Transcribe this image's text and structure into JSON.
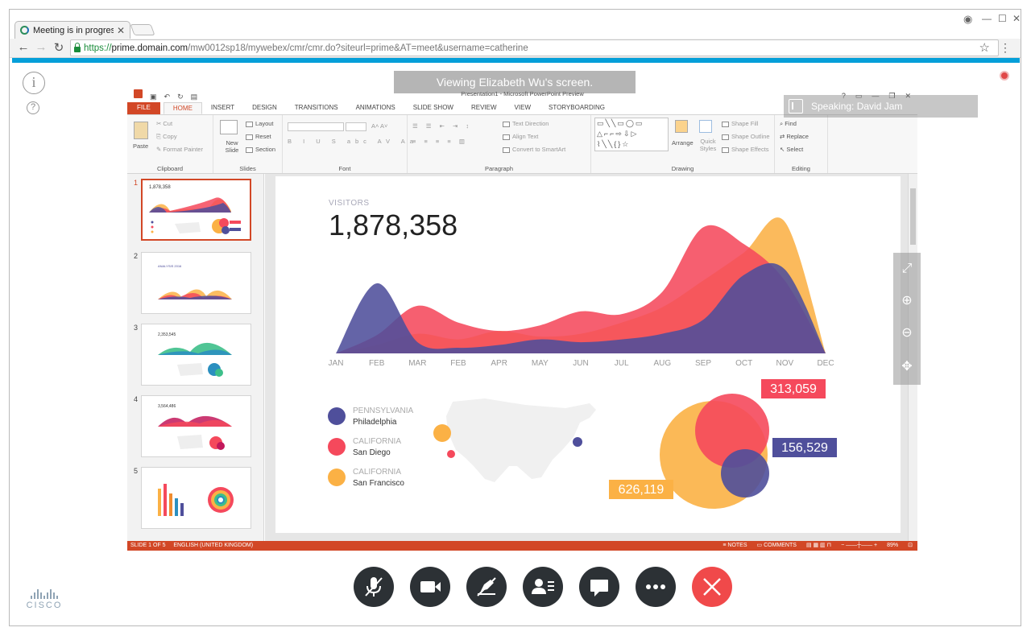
{
  "browser": {
    "tab_title": "Meeting is in progress...",
    "url_scheme": "https://",
    "url_host": "prime.domain.com",
    "url_path": "/mw0012sp18/mywebex/cmr/cmr.do?siteurl=prime&AT=meet&username=catherine"
  },
  "meeting": {
    "viewing_banner": "Viewing Elizabeth Wu's screen.",
    "speaking_banner": "Speaking: David Jam"
  },
  "ppt": {
    "window_title": "Presentation1 - Microsoft PowerPoint Preview",
    "tabs": [
      "FILE",
      "HOME",
      "INSERT",
      "DESIGN",
      "TRANSITIONS",
      "ANIMATIONS",
      "SLIDE SHOW",
      "REVIEW",
      "VIEW",
      "STORYBOARDING"
    ],
    "active_tab": "HOME",
    "groups": {
      "clipboard": {
        "label": "Clipboard",
        "paste": "Paste",
        "cut": "Cut",
        "copy": "Copy",
        "format_painter": "Format Painter"
      },
      "slides": {
        "label": "Slides",
        "new_slide": "New Slide",
        "layout": "Layout",
        "reset": "Reset",
        "section": "Section"
      },
      "font": {
        "label": "Font"
      },
      "paragraph": {
        "label": "Paragraph",
        "text_direction": "Text Direction",
        "align_text": "Align Text",
        "convert_smartart": "Convert to SmartArt"
      },
      "drawing": {
        "label": "Drawing",
        "arrange": "Arrange",
        "quick_styles": "Quick Styles",
        "shape_fill": "Shape Fill",
        "shape_outline": "Shape Outline",
        "shape_effects": "Shape Effects"
      },
      "editing": {
        "label": "Editing",
        "find": "Find",
        "replace": "Replace",
        "select": "Select"
      }
    },
    "thumbnails": [
      {
        "num": "1",
        "caption": "1,878,358"
      },
      {
        "num": "2",
        "caption": "ANALYSIS 2016"
      },
      {
        "num": "3",
        "caption": "2,353,545"
      },
      {
        "num": "4",
        "caption": "3,564,486"
      },
      {
        "num": "5",
        "caption": ""
      }
    ],
    "status": {
      "slide": "SLIDE 1 OF 5",
      "language": "ENGLISH (UNITED KINGDOM)",
      "notes": "NOTES",
      "comments": "COMMENTS",
      "zoom": "89%"
    }
  },
  "slide": {
    "label": "VISITORS",
    "value": "1,878,358",
    "legend": [
      {
        "state": "PENNSYLVANIA",
        "city": "Philadelphia",
        "color": "#4f4f9b"
      },
      {
        "state": "CALIFORNIA",
        "city": "San Diego",
        "color": "#f5495c"
      },
      {
        "state": "CALIFORNIA",
        "city": "San Francisco",
        "color": "#fbb145"
      }
    ],
    "bubbles": [
      {
        "label": "313,059",
        "color": "#f5495c"
      },
      {
        "label": "156,529",
        "color": "#4f4f9b"
      },
      {
        "label": "626,119",
        "color": "#fbb145"
      }
    ]
  },
  "chart_data": {
    "type": "area",
    "categories": [
      "JAN",
      "FEB",
      "MAR",
      "FEB",
      "APR",
      "MAY",
      "JUN",
      "JUL",
      "AUG",
      "SEP",
      "OCT",
      "NOV",
      "DEC"
    ],
    "ylim": [
      0,
      100
    ],
    "series": [
      {
        "color": "#fbb145",
        "values": [
          0,
          6,
          14,
          10,
          16,
          12,
          14,
          22,
          33,
          52,
          72,
          94,
          0
        ]
      },
      {
        "color": "#f5495c",
        "values": [
          0,
          13,
          34,
          22,
          16,
          20,
          30,
          28,
          44,
          90,
          78,
          52,
          0
        ]
      },
      {
        "color": "#4f4f9b",
        "values": [
          0,
          50,
          8,
          4,
          6,
          10,
          8,
          10,
          14,
          24,
          56,
          60,
          0
        ]
      }
    ]
  },
  "colors": {
    "accent": "#d24726",
    "cisco_blue": "#049fd9",
    "end_call": "#f0494a"
  }
}
